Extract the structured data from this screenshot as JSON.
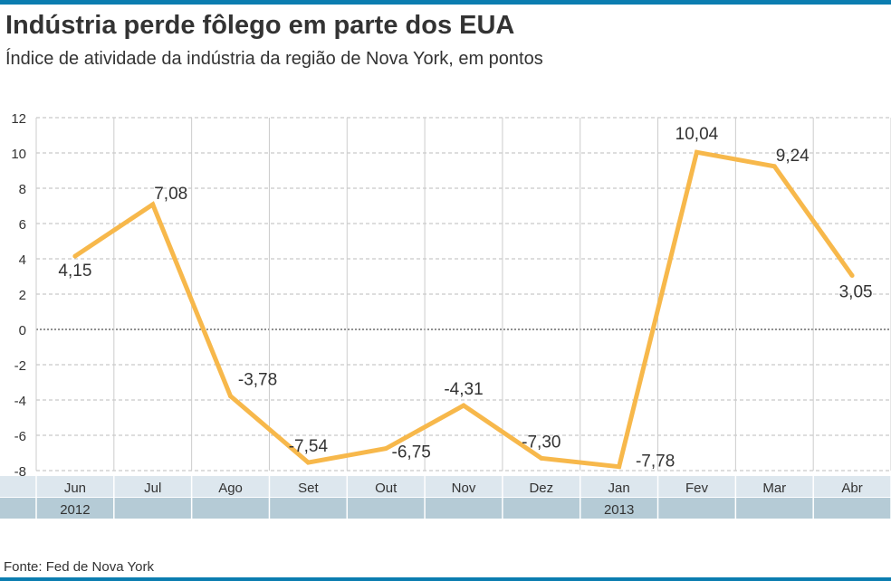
{
  "colors": {
    "line": "#f7b84b",
    "top_bar": "#0b7db0",
    "month_band": "#dde7ee",
    "year_band": "#b5cbd6",
    "grid": "#bbbbbb"
  },
  "chart_data": {
    "type": "line",
    "title": "Indústria perde fôlego em parte dos EUA",
    "subtitle": "Índice de atividade da indústria da região de Nova York, em pontos",
    "categories": [
      "Jun",
      "Jul",
      "Ago",
      "Set",
      "Out",
      "Nov",
      "Dez",
      "Jan",
      "Fev",
      "Mar",
      "Abr"
    ],
    "years": [
      {
        "label": "2012",
        "index": 0
      },
      {
        "label": "2013",
        "index": 7
      }
    ],
    "values": [
      4.15,
      7.08,
      -3.78,
      -7.54,
      -6.75,
      -4.31,
      -7.3,
      -7.78,
      10.04,
      9.24,
      3.05
    ],
    "data_labels": [
      "4,15",
      "7,08",
      "-3,78",
      "-7,54",
      "-6,75",
      "-4,31",
      "-7,30",
      "-7,78",
      "10,04",
      "9,24",
      "3,05"
    ],
    "ylim": [
      -8,
      12
    ],
    "yticks": [
      12,
      10,
      8,
      6,
      4,
      2,
      0,
      -2,
      -4,
      -6,
      -8
    ],
    "grid": true,
    "zero_line": "dotted",
    "source": "Fonte: Fed de Nova York"
  }
}
